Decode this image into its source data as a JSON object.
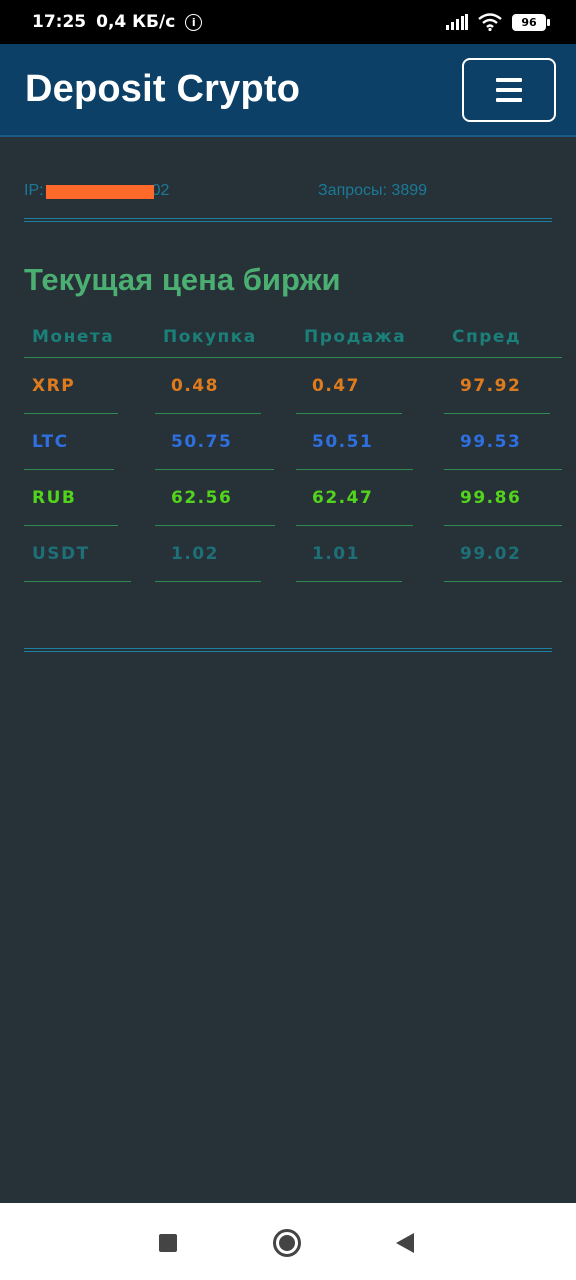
{
  "status_bar": {
    "time": "17:25",
    "speed": "0,4 КБ/с",
    "battery": "96"
  },
  "header": {
    "title": "Deposit Crypto"
  },
  "info": {
    "ip_label": "IP:",
    "ip_suffix": "02",
    "requests": "Запросы: 3899"
  },
  "section_title": "Текущая цена биржи",
  "table": {
    "columns": [
      "Монета",
      "Покупка",
      "Продажа",
      "Спред"
    ],
    "rows": [
      {
        "coin": "XRP",
        "buy": "0.48",
        "sell": "0.47",
        "spread": "97.92",
        "color": "#e07b1d"
      },
      {
        "coin": "LTC",
        "buy": "50.75",
        "sell": "50.51",
        "spread": "99.53",
        "color": "#2f6fe0"
      },
      {
        "coin": "RUB",
        "buy": "62.56",
        "sell": "62.47",
        "spread": "99.86",
        "color": "#52d41c"
      },
      {
        "coin": "USDT",
        "buy": "1.02",
        "sell": "1.01",
        "spread": "99.02",
        "color": "#1e6f78"
      }
    ]
  },
  "icons": {
    "menu": "hamburger-icon",
    "nav_recent": "square-icon",
    "nav_home": "circle-icon",
    "nav_back": "triangle-back-icon"
  }
}
